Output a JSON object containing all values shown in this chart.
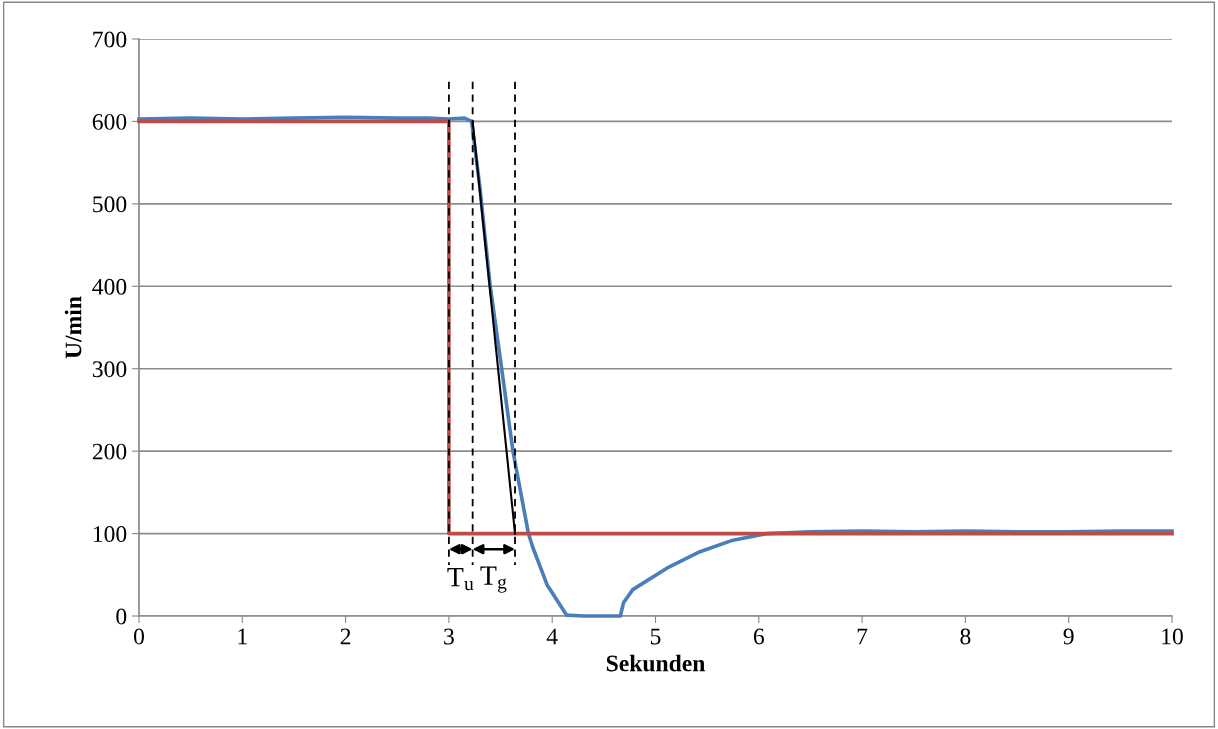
{
  "chart_data": {
    "type": "line",
    "xlabel": "Sekunden",
    "ylabel": "U/min",
    "xlim": [
      0,
      10
    ],
    "xticks": [
      0,
      1,
      2,
      3,
      4,
      5,
      6,
      7,
      8,
      9,
      10
    ],
    "ylim": [
      0,
      700
    ],
    "yticks": [
      0,
      100,
      200,
      300,
      400,
      500,
      600,
      700
    ],
    "grid": "y",
    "legend": false,
    "marker": "none",
    "series": [
      {
        "color": "#4a7ebb",
        "x": [
          0,
          0.5,
          1,
          1.5,
          2,
          2.5,
          2.8,
          3.0,
          3.15,
          3.22,
          3.3,
          3.4,
          3.5,
          3.62,
          3.77,
          3.81,
          3.95,
          4.14,
          4.3,
          4.5,
          4.66,
          4.69,
          4.78,
          5.11,
          5.43,
          5.75,
          6.08,
          6.5,
          7,
          7.5,
          8,
          8.5,
          9,
          9.5,
          10
        ],
        "values": [
          603,
          604,
          603,
          604,
          605,
          604,
          604,
          603,
          604,
          600,
          520,
          400,
          310,
          200,
          100,
          84,
          38,
          1,
          0,
          0,
          0,
          16,
          32,
          58,
          78,
          92,
          100,
          102,
          103,
          102,
          103,
          102,
          102,
          103,
          103
        ]
      },
      {
        "color": "#be4b48",
        "x": [
          0,
          3,
          3,
          10
        ],
        "values": [
          600,
          600,
          100,
          100
        ]
      },
      {
        "color": "#000000",
        "x": [
          3.23,
          3.64
        ],
        "values": [
          600,
          100
        ]
      },
      {
        "color": "#000000",
        "line_style": "dashed",
        "x": [
          3,
          3
        ],
        "values": [
          648,
          62
        ]
      },
      {
        "color": "#000000",
        "line_style": "dashed",
        "x": [
          3.23,
          3.23
        ],
        "values": [
          648,
          62
        ]
      },
      {
        "color": "#000000",
        "line_style": "dashed",
        "x": [
          3.64,
          3.64
        ],
        "values": [
          648,
          62
        ]
      }
    ],
    "annotations": [
      "T$_{u}$",
      "T$_{g}$"
    ]
  }
}
